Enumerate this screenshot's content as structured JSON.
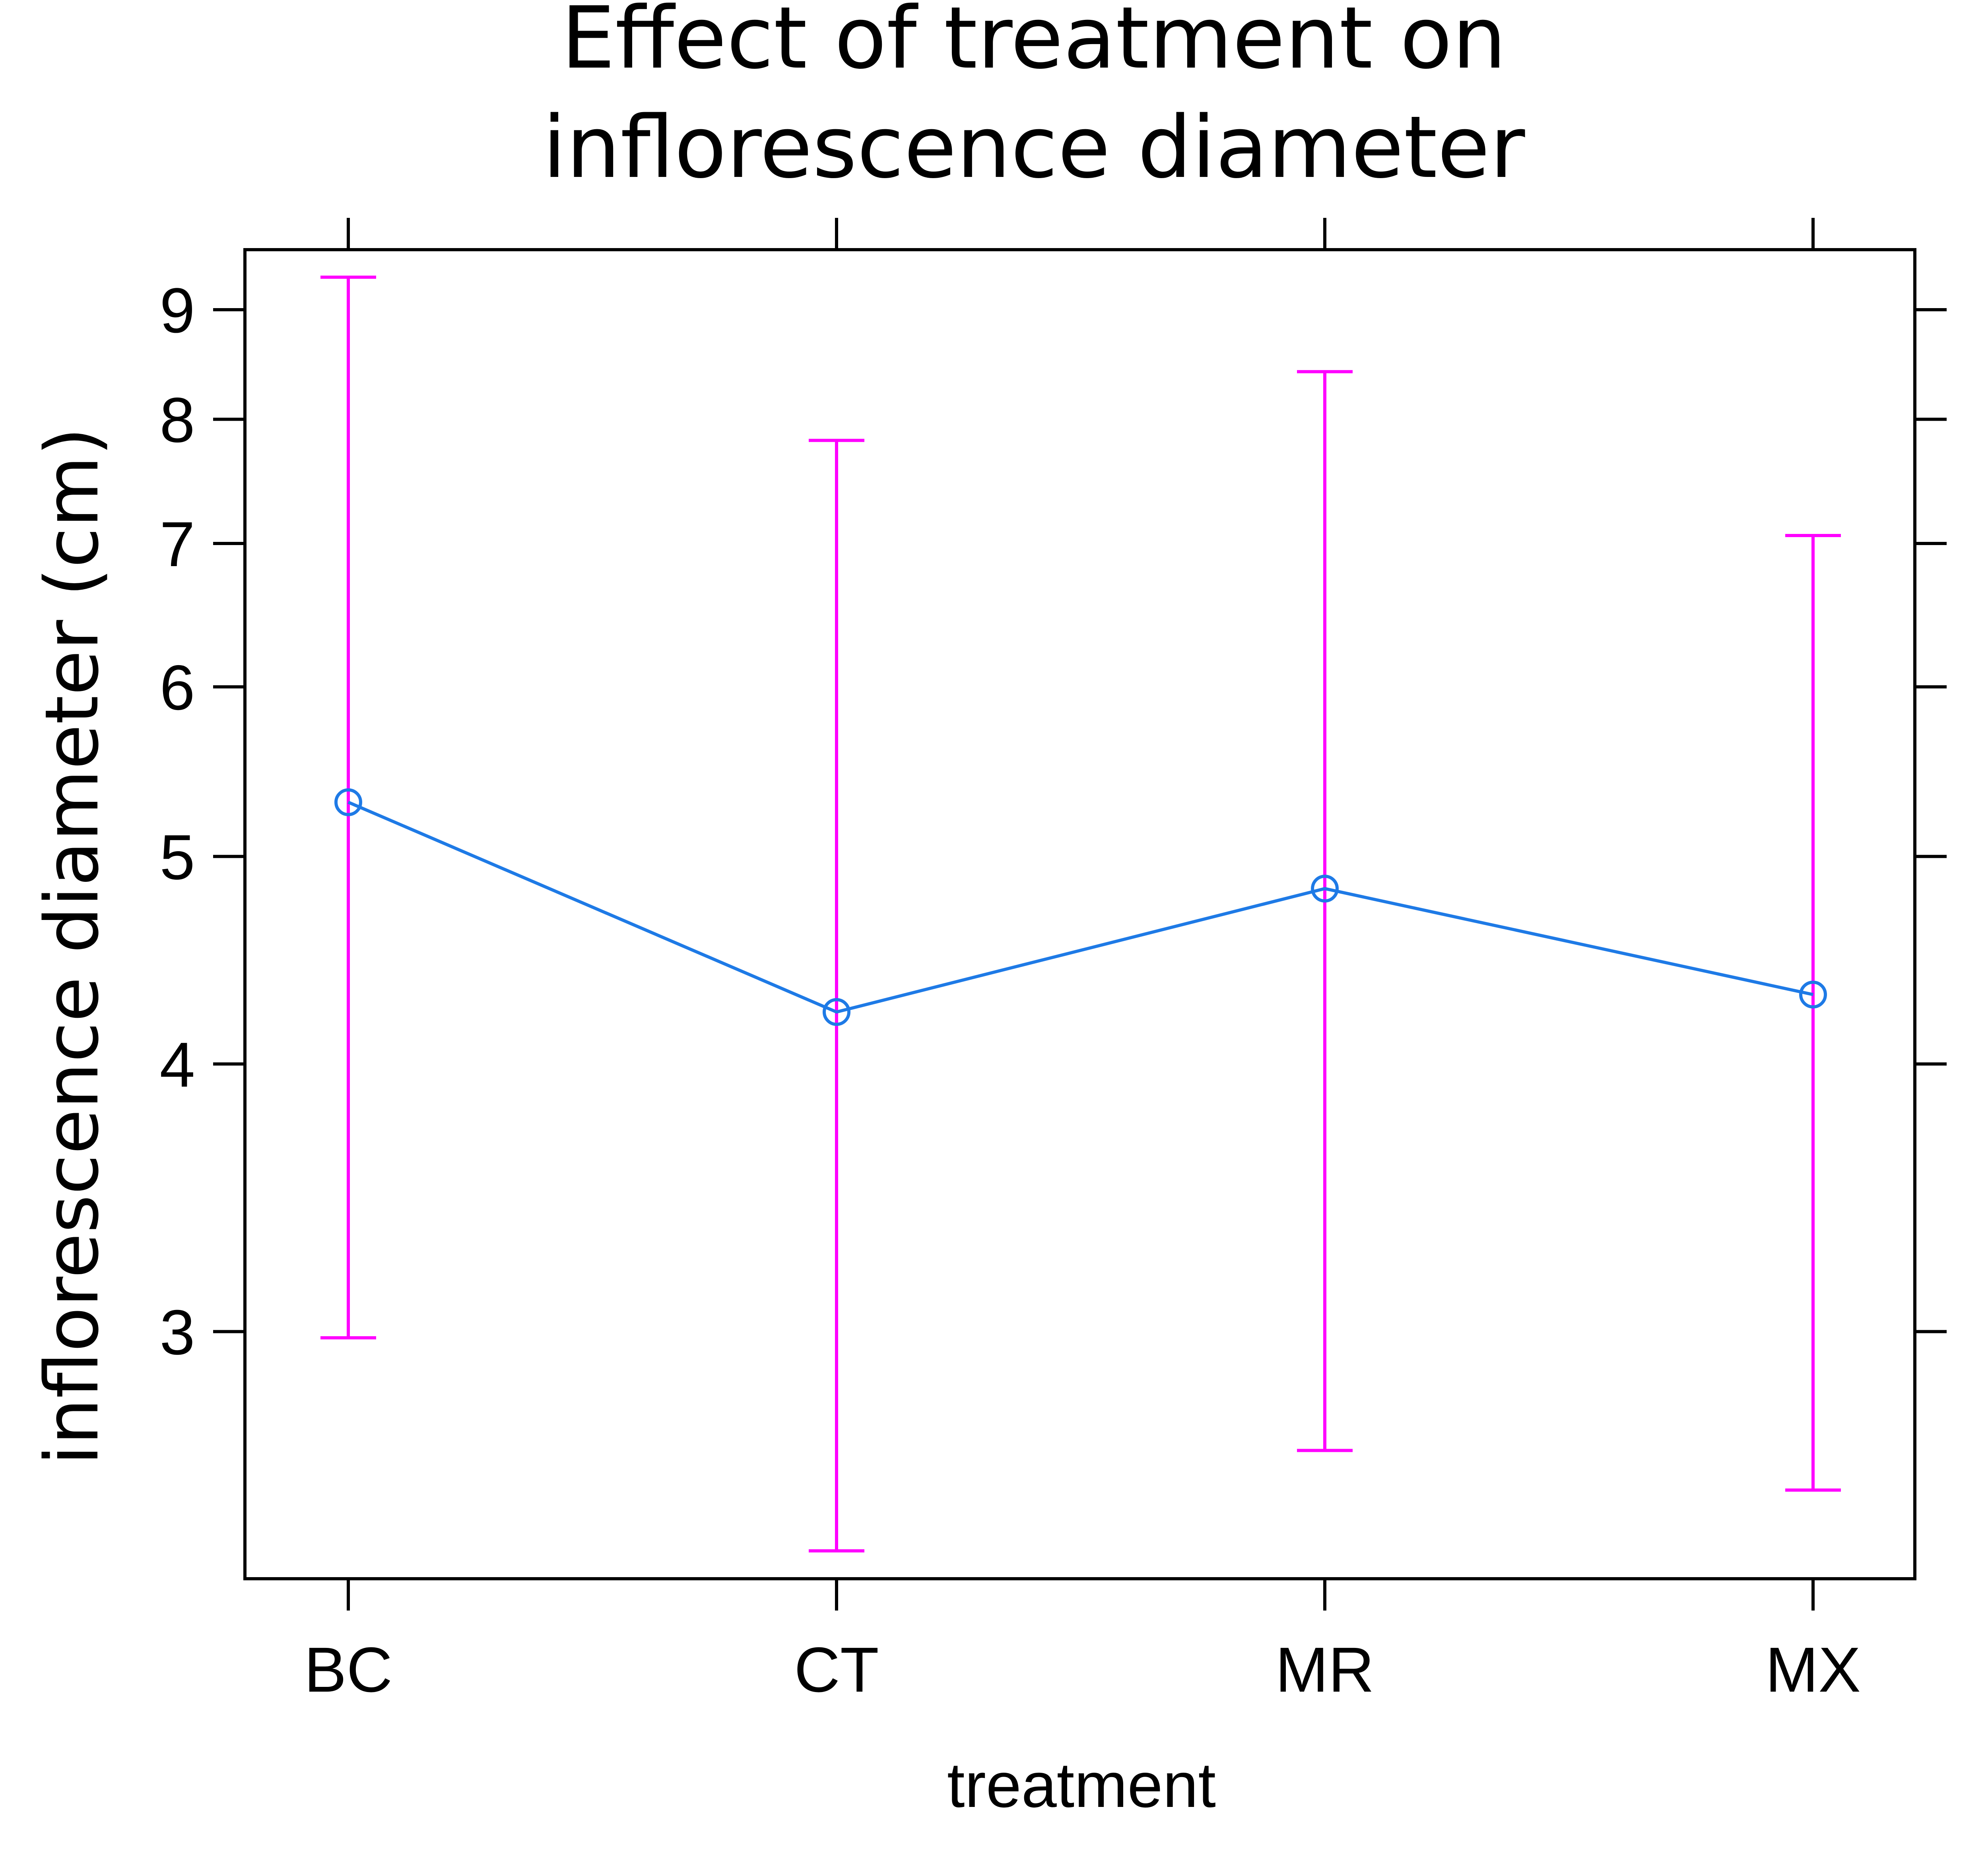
{
  "chart_data": {
    "type": "line",
    "title_lines": [
      "Effect of treatment on",
      "inflorescence diameter"
    ],
    "xlabel": "treatment",
    "ylabel": "inflorescence diameter (cm)",
    "y_scale": "log",
    "ylim": [
      2.3,
      9.6
    ],
    "y_ticks": [
      3,
      4,
      5,
      6,
      7,
      8,
      9
    ],
    "categories": [
      "BC",
      "CT",
      "MR",
      "MX"
    ],
    "series": [
      {
        "values": [
          5.3,
          4.23,
          4.83,
          4.31
        ],
        "lower": [
          2.98,
          2.37,
          2.64,
          2.53
        ],
        "upper": [
          9.32,
          7.82,
          8.42,
          7.06
        ]
      }
    ],
    "grid": false,
    "legend": "none",
    "colors": {
      "line": "#1e7ae6",
      "errorbar": "#ff00ff",
      "axis": "#000000"
    }
  }
}
